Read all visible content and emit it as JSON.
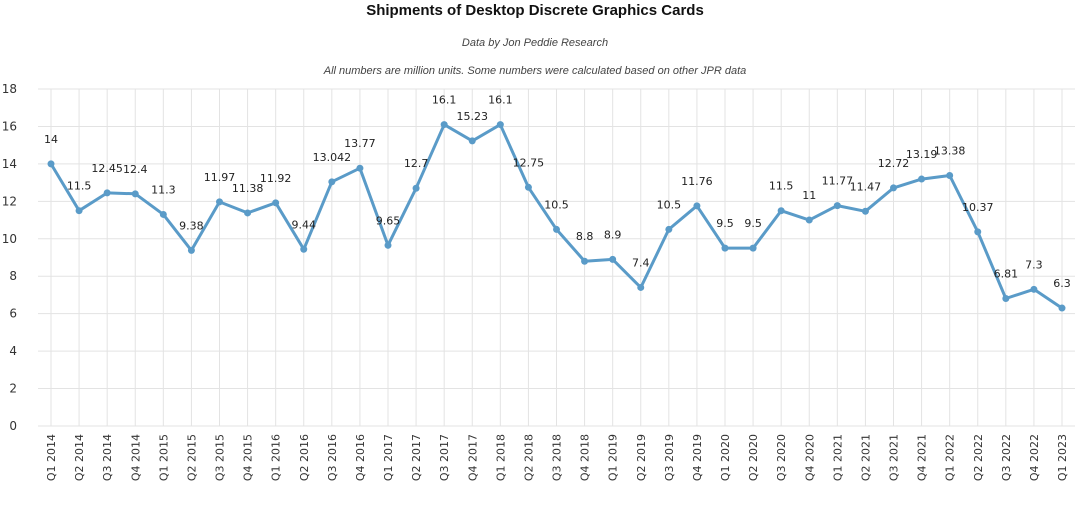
{
  "chart_data": {
    "type": "line",
    "title": "Shipments of Desktop Discrete Graphics Cards",
    "subtitle": "Data by Jon Peddie Research",
    "note": "All numbers are million units. Some numbers were calculated based on other JPR data",
    "xlabel": "",
    "ylabel": "",
    "ylim": [
      0,
      18
    ],
    "yticks": [
      0,
      2,
      4,
      6,
      8,
      10,
      12,
      14,
      16,
      18
    ],
    "grid": true,
    "legend": "none",
    "line_color": "#5a9bc8",
    "categories": [
      "Q1 2014",
      "Q2 2014",
      "Q3 2014",
      "Q4 2014",
      "Q1 2015",
      "Q2 2015",
      "Q3 2015",
      "Q4 2015",
      "Q1 2016",
      "Q2 2016",
      "Q3 2016",
      "Q4 2016",
      "Q1 2017",
      "Q2 2017",
      "Q3 2017",
      "Q4 2017",
      "Q1 2018",
      "Q2 2018",
      "Q3 2018",
      "Q4 2018",
      "Q1 2019",
      "Q2 2019",
      "Q3 2019",
      "Q4 2019",
      "Q1 2020",
      "Q2 2020",
      "Q3 2020",
      "Q4 2020",
      "Q1 2021",
      "Q2 2021",
      "Q3 2021",
      "Q4 2021",
      "Q1 2022",
      "Q2 2022",
      "Q3 2022",
      "Q4 2022",
      "Q1 2023"
    ],
    "values": [
      14,
      11.5,
      12.45,
      12.4,
      11.3,
      9.38,
      11.97,
      11.38,
      11.92,
      9.44,
      13.042,
      13.77,
      9.65,
      12.7,
      16.1,
      15.23,
      16.1,
      12.75,
      10.5,
      8.8,
      8.9,
      7.4,
      10.5,
      11.76,
      9.5,
      9.5,
      11.5,
      11,
      11.77,
      11.47,
      12.72,
      13.19,
      13.38,
      10.37,
      6.81,
      7.3,
      6.3
    ],
    "labels": [
      "14",
      "11.5",
      "12.45",
      "12.4",
      "11.3",
      "9.38",
      "11.97",
      "11.38",
      "11.92",
      "9.44",
      "13.042",
      "13.77",
      "9.65",
      "12.7",
      "16.1",
      "15.23",
      "16.1",
      "12.75",
      "10.5",
      "8.8",
      "8.9",
      "7.4",
      "10.5",
      "11.76",
      "9.5",
      "9.5",
      "11.5",
      "11",
      "11.77",
      "11.47",
      "12.72",
      "13.19",
      "13.38",
      "10.37",
      "6.81",
      "7.3",
      "6.3"
    ]
  }
}
